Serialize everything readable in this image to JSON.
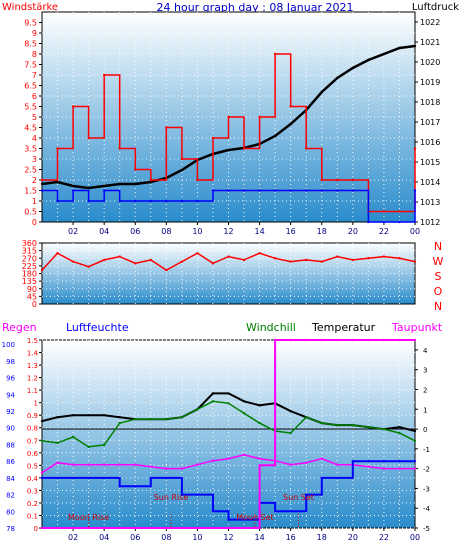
{
  "title": "24 hour graph day : 08 Januar 2021",
  "colors": {
    "bg_top": "#ffffff",
    "bg_bottom": "#2a8ccc",
    "wind": "#ff0000",
    "pressure": "#000000",
    "gust": "#0000ff",
    "humidity": "#0000ff",
    "windchill": "#008000",
    "temperature": "#000000",
    "dewpoint": "#ff00ff",
    "rain": "#ff00ff",
    "baseline": "#000000"
  },
  "chart_data": [
    {
      "type": "line",
      "label_left": "Windstärke",
      "label_right": "Luftdruck",
      "y_left_ticks": [
        "0",
        "0.5",
        "1",
        "1.5",
        "2",
        "2.5",
        "3",
        "3.5",
        "4",
        "4.5",
        "5",
        "5.5",
        "6",
        "6.5",
        "7",
        "7.5",
        "8",
        "8.5",
        "9",
        "9.5"
      ],
      "y_right_ticks": [
        "1012",
        "1013",
        "1014",
        "1015",
        "1016",
        "1017",
        "1018",
        "1019",
        "1020",
        "1021",
        "1022"
      ],
      "ylim_left": [
        0,
        10
      ],
      "ylim_right": [
        1012,
        1022.5
      ],
      "x_ticks": [
        "02",
        "04",
        "06",
        "08",
        "10",
        "12",
        "14",
        "16",
        "18",
        "20",
        "22",
        "00"
      ],
      "x_range_hours": [
        0,
        24
      ],
      "series": [
        {
          "axis": "right",
          "color_key": "pressure",
          "x": [
            0,
            1,
            2,
            3,
            4,
            5,
            6,
            7,
            8,
            9,
            10,
            11,
            12,
            13,
            14,
            15,
            16,
            17,
            18,
            19,
            20,
            21,
            22,
            23,
            24
          ],
          "values": [
            1013.9,
            1014,
            1013.8,
            1013.7,
            1013.8,
            1013.9,
            1013.9,
            1014,
            1014.2,
            1014.6,
            1015.1,
            1015.4,
            1015.6,
            1015.7,
            1015.9,
            1016.3,
            1016.9,
            1017.6,
            1018.5,
            1019.2,
            1019.7,
            1020.1,
            1020.4,
            1020.7,
            1020.8
          ]
        },
        {
          "axis": "left",
          "color_key": "wind",
          "x": [
            0,
            1,
            2,
            3,
            4,
            5,
            6,
            7,
            8,
            9,
            10,
            11,
            12,
            13,
            14,
            15,
            16,
            17,
            18,
            19,
            20,
            21,
            22,
            23,
            24
          ],
          "values": [
            2,
            3.5,
            5.5,
            4,
            7,
            3.5,
            2.5,
            2,
            4.5,
            3,
            2,
            4,
            5,
            3.5,
            5,
            8,
            5.5,
            3.5,
            2,
            2,
            2,
            0.5,
            0.5,
            0.5,
            3.5
          ]
        },
        {
          "axis": "left",
          "color_key": "gust",
          "x": [
            0,
            1,
            2,
            3,
            4,
            5,
            6,
            7,
            8,
            9,
            10,
            11,
            12,
            13,
            14,
            15,
            16,
            17,
            18,
            19,
            20,
            21,
            22,
            23,
            24
          ],
          "values": [
            1.5,
            1,
            1.5,
            1,
            1.5,
            1,
            1,
            1,
            1,
            1,
            1,
            1.5,
            1.5,
            1.5,
            1.5,
            1.5,
            1.5,
            1.5,
            1.5,
            1.5,
            1.5,
            0,
            0,
            0,
            1.5
          ]
        }
      ]
    },
    {
      "type": "line",
      "label_right_letters": [
        "N",
        "W",
        "S",
        "O",
        "N"
      ],
      "y_ticks": [
        "0",
        "45",
        "90",
        "135",
        "180",
        "225",
        "270",
        "315",
        "360"
      ],
      "ylim": [
        0,
        360
      ],
      "x_range_hours": [
        0,
        24
      ],
      "series": [
        {
          "color_key": "wind",
          "x": [
            0,
            1,
            2,
            3,
            4,
            5,
            6,
            7,
            8,
            9,
            10,
            11,
            12,
            13,
            14,
            15,
            16,
            17,
            18,
            19,
            20,
            21,
            22,
            23,
            24
          ],
          "values": [
            200,
            300,
            250,
            220,
            260,
            280,
            240,
            260,
            200,
            250,
            300,
            240,
            280,
            260,
            300,
            270,
            250,
            260,
            250,
            280,
            260,
            270,
            280,
            270,
            250
          ]
        }
      ]
    },
    {
      "type": "line",
      "label_rain": "Regen",
      "label_humidity": "Luftfeuchte",
      "label_windchill": "Windchill",
      "label_temperature": "Temperatur",
      "label_dewpoint": "Taupunkt",
      "y_rain_ticks": [
        "0",
        "0.1",
        "0.2",
        "0.3",
        "0.4",
        "0.5",
        "0.6",
        "0.7",
        "0.8",
        "0.9",
        "1",
        "1.1",
        "1.2",
        "1.3",
        "1.4",
        "1.5"
      ],
      "y_humidity_ticks": [
        "78",
        "80",
        "82",
        "84",
        "86",
        "88",
        "90",
        "92",
        "94",
        "96",
        "98",
        "100"
      ],
      "y_temp_ticks": [
        "-5",
        "-4",
        "-3",
        "-2",
        "-1",
        "0",
        "1",
        "2",
        "3",
        "4"
      ],
      "ylim_rain": [
        0,
        1.5
      ],
      "ylim_humidity": [
        78,
        100.5
      ],
      "ylim_temp": [
        -5,
        4.5
      ],
      "x_ticks": [
        "02",
        "04",
        "06",
        "08",
        "10",
        "12",
        "14",
        "16",
        "18",
        "20",
        "22",
        "00"
      ],
      "x_range_hours": [
        0,
        24
      ],
      "annotations": [
        {
          "text": "Moon Rise",
          "hour": 3
        },
        {
          "text": "Sun Rise",
          "hour": 8.3
        },
        {
          "text": "Moon Set",
          "hour": 13.7
        },
        {
          "text": "Sun Set",
          "hour": 16.5
        }
      ],
      "series": [
        {
          "color_key": "temperature",
          "x": [
            0,
            1,
            2,
            3,
            4,
            5,
            6,
            7,
            8,
            9,
            10,
            11,
            12,
            13,
            14,
            15,
            16,
            17,
            18,
            19,
            20,
            21,
            22,
            23,
            24
          ],
          "values": [
            0.4,
            0.6,
            0.7,
            0.7,
            0.7,
            0.6,
            0.5,
            0.5,
            0.5,
            0.6,
            1,
            1.8,
            1.8,
            1.4,
            1.2,
            1.3,
            0.9,
            0.6,
            0.3,
            0.2,
            0.2,
            0.1,
            0,
            0.1,
            -0.1
          ]
        },
        {
          "color_key": "windchill",
          "x": [
            0,
            1,
            2,
            3,
            4,
            5,
            6,
            7,
            8,
            9,
            10,
            11,
            12,
            13,
            14,
            15,
            16,
            17,
            18,
            19,
            20,
            21,
            22,
            23,
            24
          ],
          "values": [
            -0.6,
            -0.7,
            -0.4,
            -0.9,
            -0.8,
            0.3,
            0.5,
            0.5,
            0.5,
            0.6,
            1,
            1.4,
            1.3,
            0.8,
            0.3,
            -0.1,
            -0.2,
            0.6,
            0.3,
            0.2,
            0.2,
            0.1,
            0,
            -0.2,
            -0.6
          ]
        },
        {
          "color_key": "dewpoint",
          "x": [
            0,
            1,
            2,
            3,
            4,
            5,
            6,
            7,
            8,
            9,
            10,
            11,
            12,
            13,
            14,
            15,
            16,
            17,
            18,
            19,
            20,
            21,
            22,
            23,
            24
          ],
          "values": [
            -2.2,
            -1.7,
            -1.8,
            -1.8,
            -1.8,
            -1.8,
            -1.8,
            -1.9,
            -2,
            -2,
            -1.8,
            -1.6,
            -1.5,
            -1.3,
            -1.5,
            -1.6,
            -1.8,
            -1.7,
            -1.5,
            -1.8,
            -1.8,
            -1.9,
            -2,
            -2,
            -2
          ]
        },
        {
          "color_key": "humidity",
          "x": [
            0,
            1,
            2,
            3,
            4,
            5,
            6,
            7,
            8,
            9,
            10,
            11,
            12,
            13,
            14,
            15,
            16,
            17,
            18,
            19,
            20,
            21,
            22,
            23,
            24
          ],
          "values": [
            84,
            84,
            84,
            84,
            84,
            83,
            83,
            84,
            84,
            82,
            82,
            80,
            79,
            79,
            81,
            80,
            80,
            82,
            84,
            84,
            86,
            86,
            86,
            86,
            86
          ]
        },
        {
          "color_key": "rain",
          "x": [
            0,
            1,
            2,
            3,
            4,
            5,
            6,
            7,
            8,
            9,
            10,
            11,
            12,
            13,
            14,
            15,
            16,
            17,
            18,
            19,
            20,
            21,
            22,
            23,
            24
          ],
          "values": [
            0,
            0,
            0,
            0,
            0,
            0,
            0,
            0,
            0,
            0,
            0,
            0,
            0,
            0,
            0.5,
            1.5,
            1.5,
            1.5,
            1.5,
            1.5,
            1.5,
            1.5,
            1.5,
            1.5,
            1.5
          ]
        }
      ]
    }
  ]
}
